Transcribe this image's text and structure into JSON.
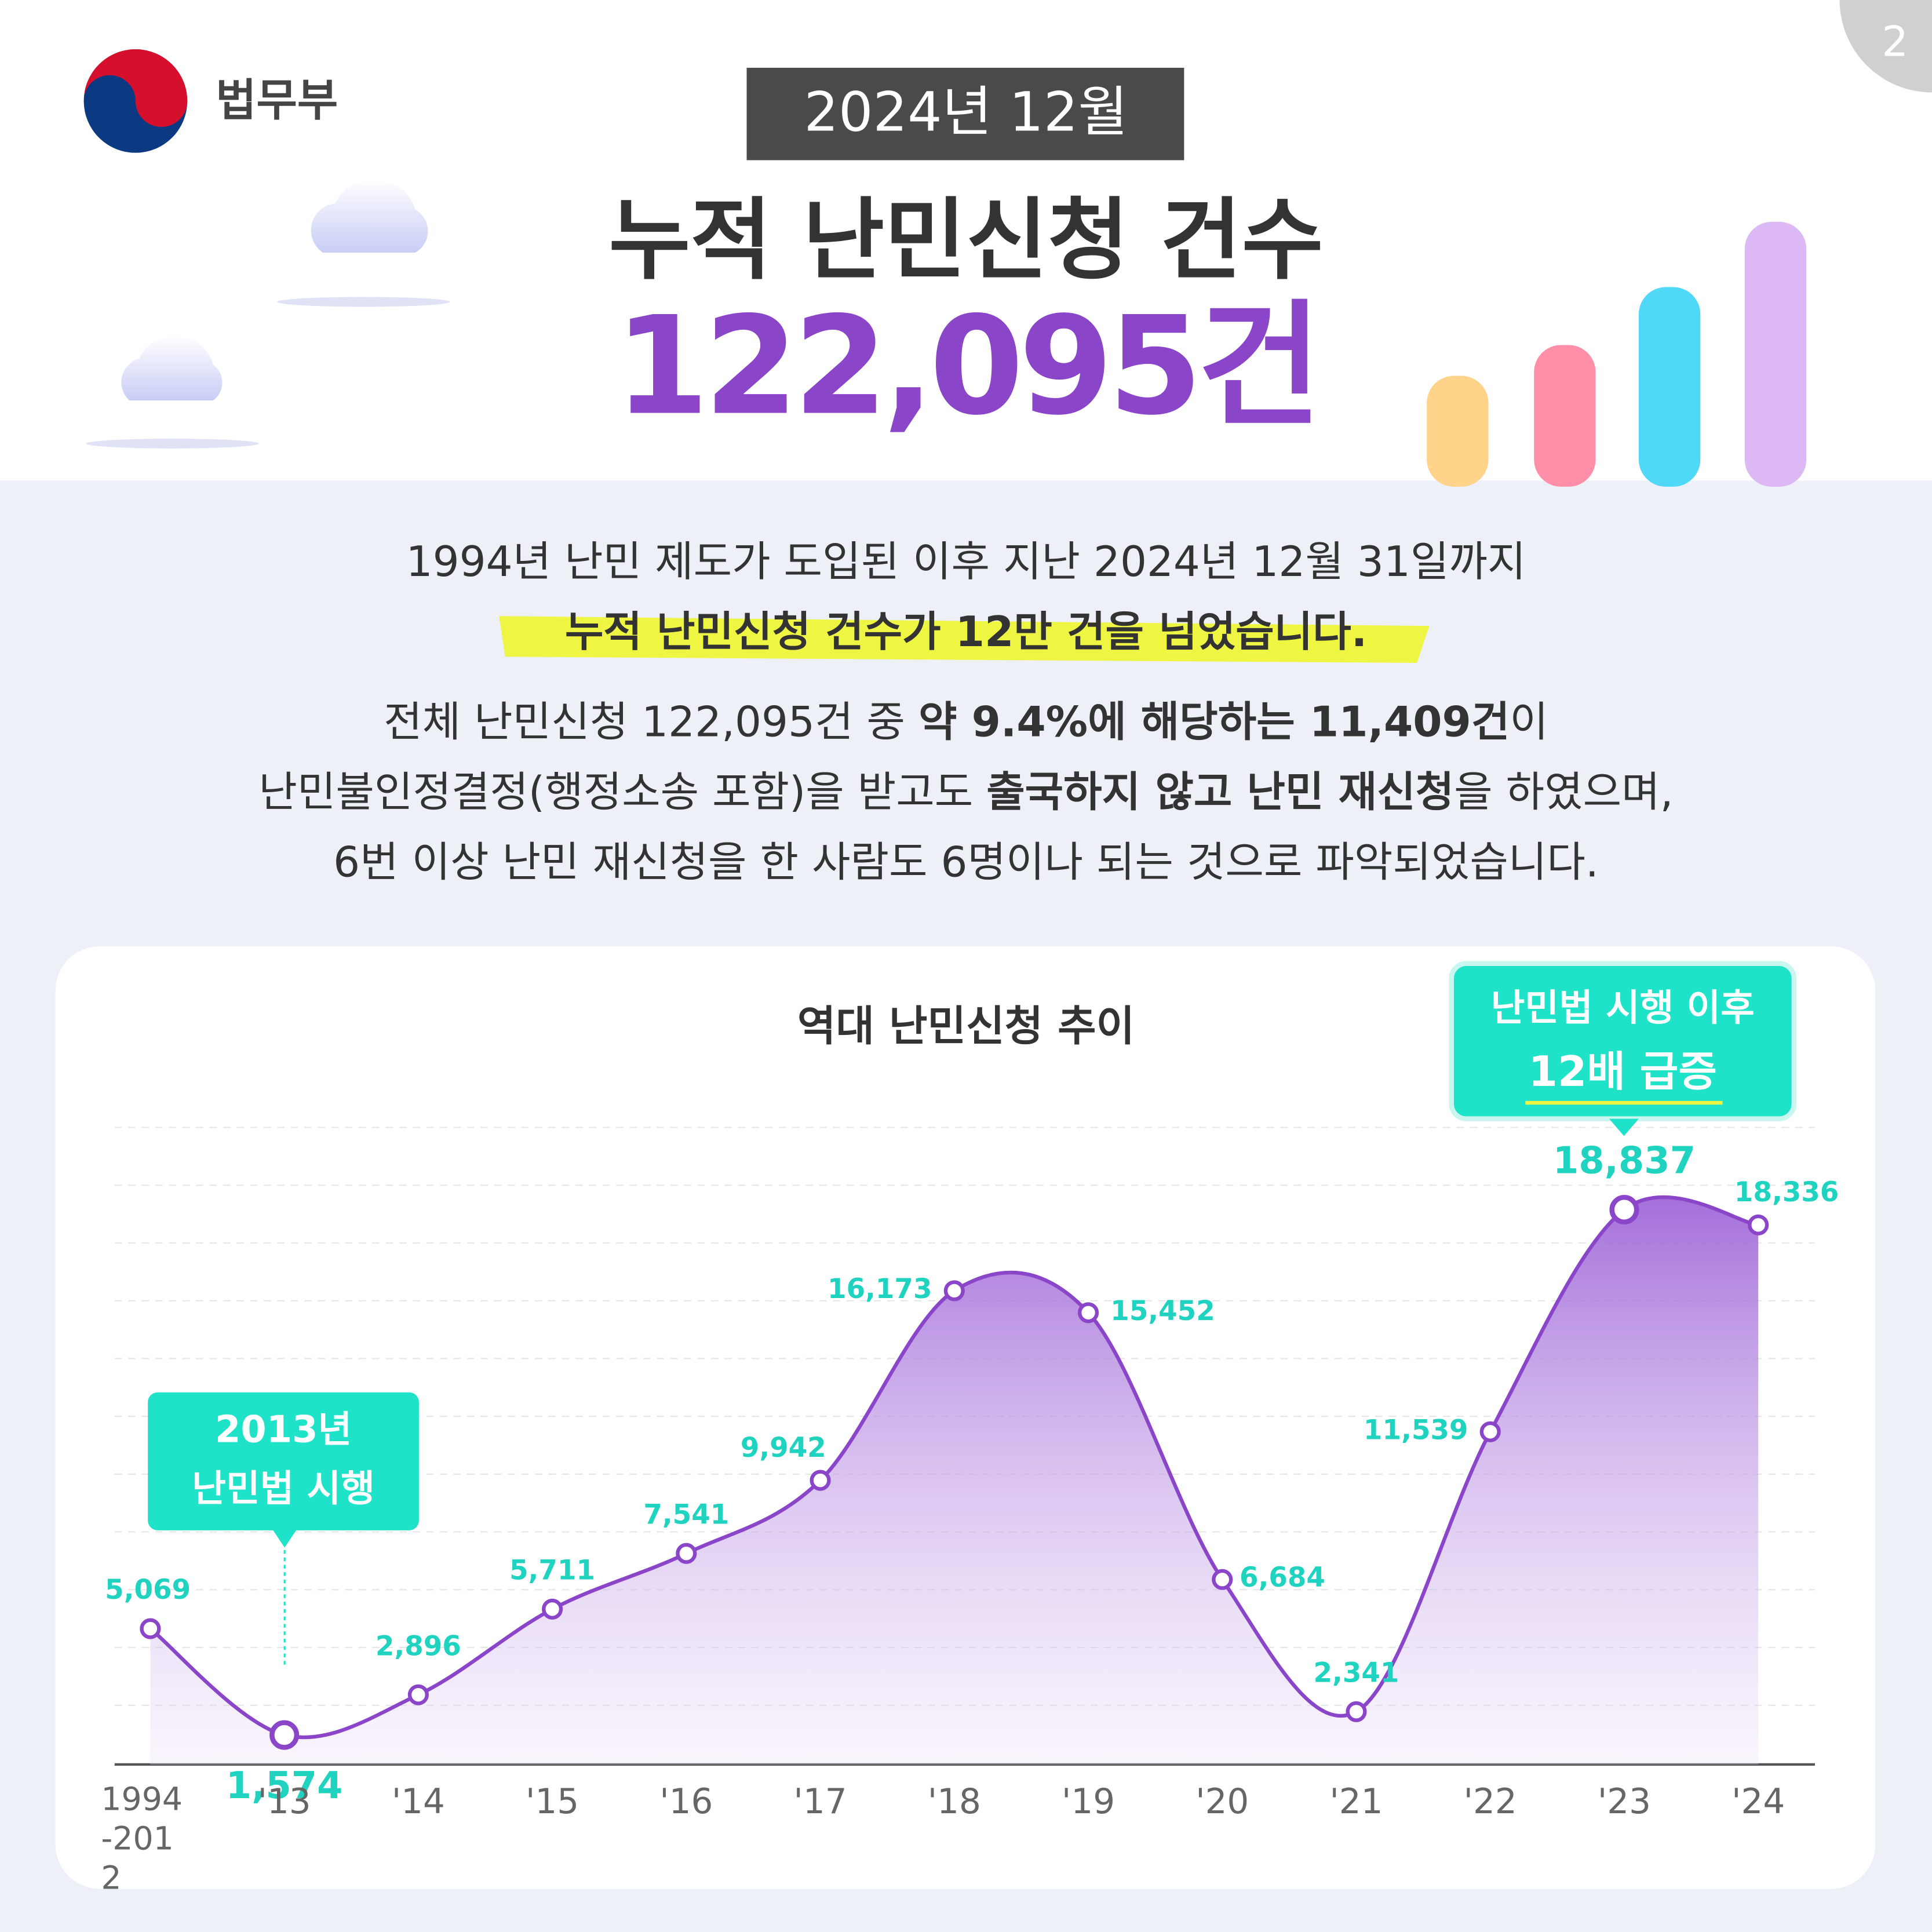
{
  "header": {
    "ministry": "법무부",
    "date_badge": "2024년 12월",
    "title": "누적 난민신청 건수",
    "total": "122,095건",
    "page_number": "2"
  },
  "intro": {
    "line1": "1994년 난민 제도가 도입된 이후 지난 2024년 12월 31일까지",
    "line2": "누적 난민신청 건수가 12만 건을 넘었습니다."
  },
  "detail": {
    "lines": [
      [
        {
          "text": "전체 난민신청 122,095건 중 ",
          "bold": false
        },
        {
          "text": "약 9.4%에 해당하는 11,409건",
          "bold": true
        },
        {
          "text": "이",
          "bold": false
        }
      ],
      [
        {
          "text": "난민불인정결정(행정소송 포함)을 받고도 ",
          "bold": false
        },
        {
          "text": "출국하지 않고 난민 재신청",
          "bold": true
        },
        {
          "text": "을 하였으며,",
          "bold": false
        }
      ],
      [
        {
          "text": "6번 이상 난민 재신청을 한 사람도 6명이나 되는 것으로 파악되었습니다.",
          "bold": false
        }
      ]
    ]
  },
  "chart_data": {
    "type": "line",
    "title": "역대 난민신청 추이",
    "categories": [
      "1994-2012",
      "'13",
      "'14",
      "'15",
      "'16",
      "'17",
      "'18",
      "'19",
      "'20",
      "'21",
      "'22",
      "'23",
      "'24"
    ],
    "values": [
      5069,
      1574,
      2896,
      5711,
      7541,
      9942,
      16173,
      15452,
      6684,
      2341,
      11539,
      18837,
      18336
    ],
    "value_labels": [
      "5,069",
      "1,574",
      "2,896",
      "5,711",
      "7,541",
      "9,942",
      "16,173",
      "15,452",
      "6,684",
      "2,341",
      "11,539",
      "18,837",
      "18,336"
    ],
    "color": "#8a45c8",
    "ylim": [
      0,
      21500
    ],
    "annotations": [
      {
        "lines": [
          "2013년",
          "난민법 시행"
        ]
      },
      {
        "lines": [
          "난민법 시행 이후",
          "12배 급증"
        ]
      }
    ]
  }
}
